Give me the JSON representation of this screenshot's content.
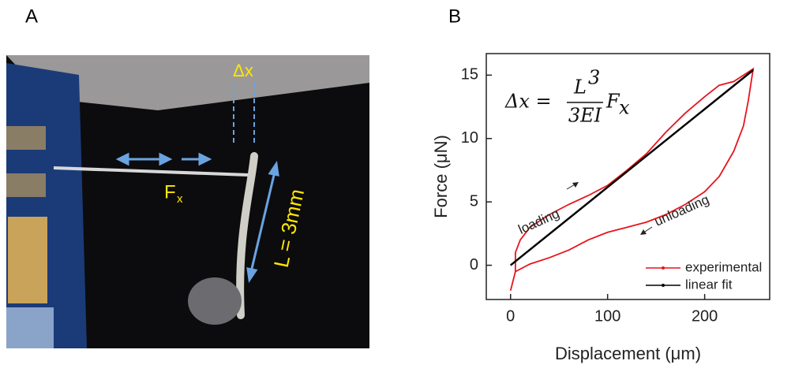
{
  "panels": {
    "a_label": "A",
    "b_label": "B"
  },
  "photo": {
    "delta_label": "Δx",
    "force_label": "F",
    "force_subscript": "x",
    "length_label": "L = 3mm"
  },
  "chart_data": {
    "type": "line",
    "xlabel": "Displacement (μm)",
    "ylabel": "Force (μN)",
    "xlim": [
      -25,
      267
    ],
    "ylim": [
      -2.7,
      16.7
    ],
    "xticks": [
      0,
      100,
      200
    ],
    "yticks": [
      0,
      5,
      10,
      15
    ],
    "series": [
      {
        "name": "experimental",
        "color": "#e8141c",
        "x": [
          0,
          5,
          5,
          10,
          20,
          40,
          60,
          80,
          100,
          120,
          140,
          160,
          180,
          200,
          215,
          230,
          240,
          250,
          245,
          240,
          230,
          215,
          200,
          180,
          160,
          140,
          120,
          100,
          80,
          60,
          40,
          20,
          5
        ],
        "values": [
          -2,
          -0.5,
          1,
          2,
          3,
          4,
          4.8,
          5.5,
          6.3,
          7.5,
          8.8,
          10.5,
          12,
          13.3,
          14.2,
          14.5,
          15,
          15.5,
          13,
          11,
          9,
          7,
          5.8,
          4.8,
          4,
          3.4,
          3,
          2.6,
          2,
          1.2,
          0.6,
          0.1,
          -0.5
        ]
      },
      {
        "name": "linear fit",
        "color": "#000000",
        "x": [
          0,
          250
        ],
        "values": [
          0,
          15.4
        ]
      }
    ],
    "annotations": {
      "loading": "loading",
      "unloading": "unloading"
    },
    "equation": {
      "lhs": "Δx =",
      "numerator": "L",
      "exponent": "3",
      "denominator": "3EI",
      "factor": "F",
      "factor_subscript": "x"
    },
    "legend": "lower right"
  }
}
